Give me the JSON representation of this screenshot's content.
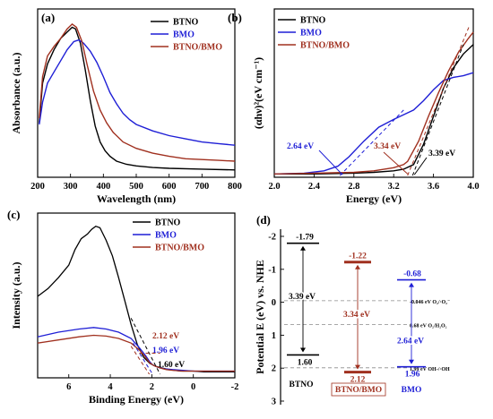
{
  "colors": {
    "btno": "#000000",
    "bmo": "#1f1fd6",
    "composite": "#a0301f",
    "dash_gray": "#8a8a8a"
  },
  "chart_data": [
    {
      "type": "line",
      "panel": "(a)",
      "xlabel": "Wavelength (nm)",
      "ylabel": "Absorbance (a.u.)",
      "xlim": [
        200,
        800
      ],
      "xticks": [
        200,
        300,
        400,
        500,
        600,
        700,
        800
      ],
      "legend_position": "top-right",
      "series": [
        {
          "name": "BTNO",
          "color_key": "btno",
          "x": [
            205,
            215,
            230,
            250,
            270,
            290,
            305,
            315,
            330,
            345,
            360,
            375,
            390,
            405,
            420,
            440,
            470,
            500,
            550,
            600,
            700,
            800
          ],
          "y": [
            0.33,
            0.58,
            0.7,
            0.79,
            0.86,
            0.9,
            0.93,
            0.92,
            0.83,
            0.66,
            0.47,
            0.31,
            0.21,
            0.155,
            0.12,
            0.09,
            0.07,
            0.06,
            0.05,
            0.045,
            0.04,
            0.035
          ]
        },
        {
          "name": "BMO",
          "color_key": "bmo",
          "x": [
            205,
            215,
            230,
            250,
            270,
            290,
            310,
            325,
            340,
            360,
            380,
            400,
            420,
            440,
            460,
            480,
            500,
            550,
            600,
            650,
            700,
            750,
            800
          ],
          "y": [
            0.32,
            0.46,
            0.58,
            0.65,
            0.72,
            0.79,
            0.84,
            0.85,
            0.83,
            0.78,
            0.71,
            0.62,
            0.52,
            0.45,
            0.39,
            0.35,
            0.32,
            0.28,
            0.25,
            0.23,
            0.21,
            0.2,
            0.19
          ]
        },
        {
          "name": "BTNO/BMO",
          "color_key": "composite",
          "x": [
            205,
            215,
            230,
            250,
            270,
            290,
            305,
            318,
            335,
            350,
            370,
            390,
            410,
            430,
            460,
            500,
            550,
            600,
            650,
            700,
            750,
            800
          ],
          "y": [
            0.36,
            0.62,
            0.75,
            0.81,
            0.86,
            0.92,
            0.95,
            0.93,
            0.84,
            0.7,
            0.53,
            0.41,
            0.33,
            0.27,
            0.21,
            0.17,
            0.14,
            0.12,
            0.105,
            0.1,
            0.095,
            0.09
          ]
        }
      ]
    },
    {
      "type": "line",
      "panel": "(b)",
      "xlabel": "Energy (eV)",
      "ylabel": "(αhν)²(eV cm⁻¹)",
      "xlim": [
        2.0,
        4.0
      ],
      "xticks": [
        "2.0",
        "2.4",
        "2.8",
        "3.2",
        "3.6",
        "4.0"
      ],
      "legend_position": "top-left",
      "series": [
        {
          "name": "BTNO",
          "color_key": "btno",
          "x": [
            2.0,
            2.4,
            2.8,
            3.0,
            3.2,
            3.3,
            3.4,
            3.5,
            3.6,
            3.7,
            3.8,
            3.9,
            4.0
          ],
          "y": [
            0.01,
            0.01,
            0.015,
            0.02,
            0.03,
            0.04,
            0.07,
            0.2,
            0.38,
            0.56,
            0.69,
            0.78,
            0.84
          ]
        },
        {
          "name": "BMO",
          "color_key": "bmo",
          "x": [
            2.0,
            2.3,
            2.5,
            2.64,
            2.75,
            2.9,
            3.05,
            3.2,
            3.3,
            3.4,
            3.5,
            3.6,
            3.7,
            3.8,
            3.9,
            4.0
          ],
          "y": [
            0.01,
            0.015,
            0.03,
            0.06,
            0.12,
            0.22,
            0.31,
            0.36,
            0.39,
            0.42,
            0.48,
            0.55,
            0.61,
            0.63,
            0.64,
            0.66
          ]
        },
        {
          "name": "BTNO/BMO",
          "color_key": "composite",
          "x": [
            2.0,
            2.4,
            2.8,
            3.0,
            3.2,
            3.3,
            3.34,
            3.45,
            3.55,
            3.65,
            3.75,
            3.85,
            3.95,
            4.0
          ],
          "y": [
            0.01,
            0.015,
            0.02,
            0.03,
            0.05,
            0.07,
            0.09,
            0.22,
            0.38,
            0.53,
            0.67,
            0.79,
            0.88,
            0.92
          ]
        }
      ],
      "tangents": [
        {
          "color_key": "bmo",
          "x": [
            2.66,
            3.3
          ],
          "y": [
            0.0,
            0.42
          ]
        },
        {
          "color_key": "composite",
          "x": [
            3.34,
            3.96
          ],
          "y": [
            0.0,
            0.96
          ]
        },
        {
          "color_key": "btno",
          "x": [
            3.39,
            3.9
          ],
          "y": [
            0.0,
            0.84
          ]
        }
      ],
      "annotations": [
        {
          "text": "2.64 eV",
          "color_key": "bmo",
          "x": 2.64
        },
        {
          "text": "3.34 eV",
          "color_key": "composite",
          "x": 3.34
        },
        {
          "text": "3.39 eV",
          "color_key": "btno",
          "x": 3.39
        }
      ]
    },
    {
      "type": "line",
      "panel": "(c)",
      "xlabel": "Binding Energy (eV)",
      "ylabel": "Intensity (a.u.)",
      "xlim": [
        7.5,
        -2.0
      ],
      "xticks": [
        "6",
        "4",
        "2",
        "0",
        "-2"
      ],
      "legend_position": "top-right",
      "series": [
        {
          "name": "BTNO",
          "color_key": "btno",
          "x": [
            7.5,
            7.0,
            6.5,
            6.0,
            5.7,
            5.4,
            5.1,
            4.9,
            4.7,
            4.5,
            4.2,
            3.9,
            3.6,
            3.3,
            3.0,
            2.7,
            2.4,
            2.1,
            1.8,
            1.5,
            1.2,
            0.9,
            0.6,
            0.3,
            0.0,
            -0.5,
            -1.0,
            -1.5,
            -2.0
          ],
          "y": [
            0.5,
            0.55,
            0.62,
            0.7,
            0.8,
            0.87,
            0.9,
            0.93,
            0.95,
            0.94,
            0.86,
            0.76,
            0.62,
            0.47,
            0.32,
            0.19,
            0.11,
            0.07,
            0.05,
            0.04,
            0.03,
            0.025,
            0.02,
            0.02,
            0.02,
            0.015,
            0.015,
            0.015,
            0.015
          ]
        },
        {
          "name": "BMO",
          "color_key": "bmo",
          "x": [
            7.5,
            6.5,
            5.5,
            4.8,
            4.2,
            3.6,
            3.0,
            2.6,
            2.3,
            2.1,
            1.96,
            1.7,
            1.4,
            1.0,
            0.5,
            0.0,
            -1.0,
            -2.0
          ],
          "y": [
            0.24,
            0.27,
            0.29,
            0.3,
            0.29,
            0.27,
            0.23,
            0.17,
            0.12,
            0.08,
            0.06,
            0.045,
            0.035,
            0.03,
            0.025,
            0.02,
            0.02,
            0.02
          ]
        },
        {
          "name": "BTNO/BMO",
          "color_key": "composite",
          "x": [
            7.5,
            6.5,
            5.5,
            4.8,
            4.2,
            3.6,
            3.0,
            2.6,
            2.3,
            2.12,
            1.9,
            1.6,
            1.3,
            1.0,
            0.5,
            0.0,
            -1.0,
            -2.0
          ],
          "y": [
            0.2,
            0.22,
            0.24,
            0.25,
            0.245,
            0.23,
            0.2,
            0.155,
            0.11,
            0.075,
            0.055,
            0.04,
            0.03,
            0.025,
            0.02,
            0.02,
            0.02,
            0.02
          ]
        }
      ],
      "annotations": [
        {
          "text": "2.12 eV",
          "color_key": "composite",
          "x": 2.12
        },
        {
          "text": "1.96 eV",
          "color_key": "bmo",
          "x": 1.96
        },
        {
          "text": "1.60 eV",
          "color_key": "btno",
          "x": 1.6
        }
      ]
    },
    {
      "type": "diagram",
      "panel": "(d)",
      "ylabel": "Potential E (eV) vs. NHE",
      "ylim": [
        -2,
        3
      ],
      "yticks": [
        "-2",
        "-1",
        "0",
        "1",
        "2",
        "3"
      ],
      "materials": [
        {
          "name": "BTNO",
          "color_key": "btno",
          "cb": -1.79,
          "vb": 1.6,
          "cb_label": "-1.79",
          "vb_label": "1.60",
          "gap_label": "3.39 eV"
        },
        {
          "name": "BTNO/BMO",
          "color_key": "composite",
          "cb": -1.22,
          "vb": 2.12,
          "cb_label": "-1.22",
          "vb_label": "2.12",
          "gap_label": "3.34 eV"
        },
        {
          "name": "BMO",
          "color_key": "bmo",
          "cb": -0.68,
          "vb": 1.96,
          "cb_label": "-0.68",
          "vb_label": "1.96",
          "gap_label": "2.64 eV"
        }
      ],
      "reference_levels": [
        {
          "value": -0.046,
          "label": "-0.046 eV O₂/·O₂⁻"
        },
        {
          "value": 0.68,
          "label": "0.68 eV O₂/H₂O₂"
        },
        {
          "value": 1.99,
          "label": "1.99 eV OH-/·OH"
        }
      ]
    }
  ]
}
